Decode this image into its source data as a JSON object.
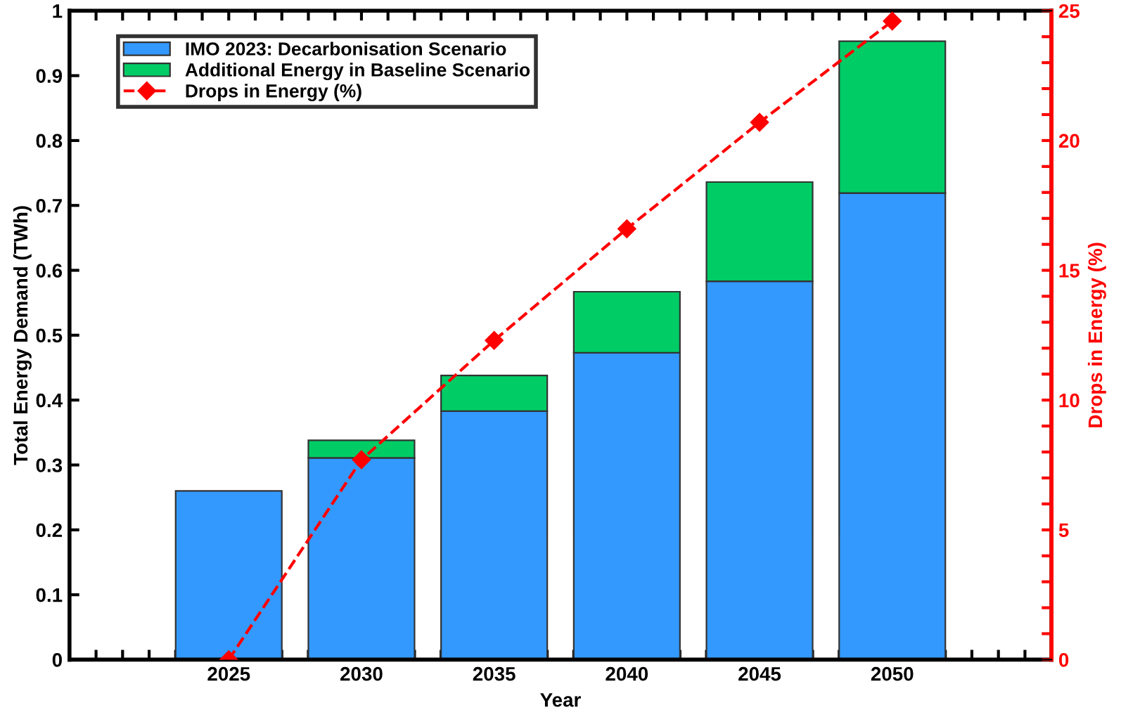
{
  "chart_data": {
    "type": "bar",
    "stacked": true,
    "xlabel": "Year",
    "ylabel": "Total Energy Demand (TWh)",
    "y2label": "Drops in Energy (%)",
    "x": [
      2025,
      2030,
      2035,
      2040,
      2045,
      2050
    ],
    "series": [
      {
        "name": "IMO 2023: Decarbonisation Scenario",
        "color": "#3399ff",
        "values": [
          0.26,
          0.311,
          0.383,
          0.473,
          0.583,
          0.719
        ]
      },
      {
        "name": "Additional Energy in Baseline Scenario",
        "color": "#00cc66",
        "values": [
          null,
          0.027,
          0.055,
          0.094,
          0.153,
          0.234
        ]
      },
      {
        "name": "Drops in Energy (%)",
        "type": "line",
        "axis": "y2",
        "color": "#ff0000",
        "marker": "diamond",
        "line_style": "dashed",
        "values": [
          0,
          7.7,
          12.3,
          16.6,
          20.7,
          24.6
        ]
      }
    ],
    "xlim": [
      2019,
      2056
    ],
    "xticks": [
      {
        "value": 2019,
        "label": null
      },
      {
        "value": 2020,
        "label": null
      },
      {
        "value": 2021,
        "label": null
      },
      {
        "value": 2022,
        "label": null
      },
      {
        "value": 2023,
        "label": null
      },
      {
        "value": 2024,
        "label": null
      },
      2025,
      {
        "value": 2026,
        "label": null
      },
      {
        "value": 2027,
        "label": null
      },
      {
        "value": 2028,
        "label": null
      },
      {
        "value": 2029,
        "label": null
      },
      2030,
      {
        "value": 2031,
        "label": null
      },
      {
        "value": 2032,
        "label": null
      },
      {
        "value": 2033,
        "label": null
      },
      {
        "value": 2034,
        "label": null
      },
      2035,
      {
        "value": 2036,
        "label": null
      },
      {
        "value": 2037,
        "label": null
      },
      {
        "value": 2038,
        "label": null
      },
      {
        "value": 2039,
        "label": null
      },
      2040,
      {
        "value": 2041,
        "label": null
      },
      {
        "value": 2042,
        "label": null
      },
      {
        "value": 2043,
        "label": null
      },
      {
        "value": 2044,
        "label": null
      },
      2045,
      {
        "value": 2046,
        "label": null
      },
      {
        "value": 2047,
        "label": null
      },
      {
        "value": 2048,
        "label": null
      },
      {
        "value": 2049,
        "label": null
      },
      2050,
      {
        "value": 2051,
        "label": null
      },
      {
        "value": 2052,
        "label": null
      },
      {
        "value": 2053,
        "label": null
      },
      {
        "value": 2054,
        "label": null
      },
      {
        "value": 2055,
        "label": null
      },
      {
        "value": 2056,
        "label": null
      }
    ],
    "ylim": [
      0,
      1
    ],
    "yticks": [
      0,
      0.1,
      0.2,
      0.3,
      0.4,
      0.5,
      0.6,
      0.7,
      0.8,
      0.9,
      1
    ],
    "y2lim": [
      0,
      25
    ],
    "y2ticks": [
      0,
      {
        "value": 1,
        "label": null
      },
      {
        "value": 2,
        "label": null
      },
      {
        "value": 3,
        "label": null
      },
      {
        "value": 4,
        "label": null
      },
      5,
      {
        "value": 6,
        "label": null
      },
      {
        "value": 7,
        "label": null
      },
      {
        "value": 8,
        "label": null
      },
      {
        "value": 9,
        "label": null
      },
      10,
      {
        "value": 11,
        "label": null
      },
      {
        "value": 12,
        "label": null
      },
      {
        "value": 13,
        "label": null
      },
      {
        "value": 14,
        "label": null
      },
      15,
      {
        "value": 16,
        "label": null
      },
      {
        "value": 17,
        "label": null
      },
      {
        "value": 18,
        "label": null
      },
      {
        "value": 19,
        "label": null
      },
      20,
      {
        "value": 21,
        "label": null
      },
      {
        "value": 22,
        "label": null
      },
      {
        "value": 23,
        "label": null
      },
      {
        "value": 24,
        "label": null
      },
      25
    ],
    "grid": false,
    "legend": "top left"
  }
}
